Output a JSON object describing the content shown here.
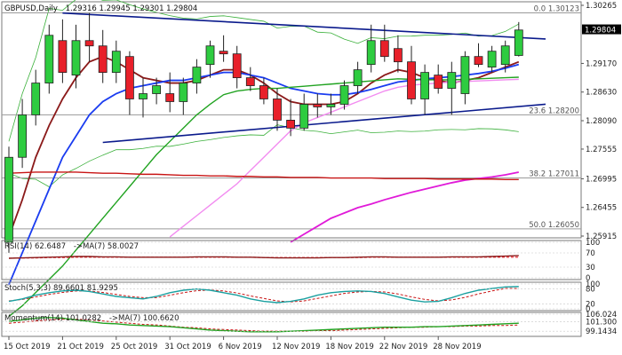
{
  "header": {
    "symbol": "GBPUSD,Daily",
    "ohlc": "1.29316 1.29945 1.29301 1.29804"
  },
  "price_axis": {
    "ticks": [
      "1.30265",
      "1.29170",
      "1.28630",
      "1.28090",
      "1.27555",
      "1.26995",
      "1.26455",
      "1.25915"
    ],
    "current_price": "1.29804"
  },
  "fib_levels": [
    {
      "label": "0.0 1.30123",
      "value": 1.30123
    },
    {
      "label": "23.6 1.28200",
      "value": 1.282
    },
    {
      "label": "38.2 1.27011",
      "value": 1.27011
    },
    {
      "label": "50.0 1.26050",
      "value": 1.2605
    }
  ],
  "x_axis": {
    "labels": [
      {
        "text": "15 Oct 2019",
        "index": 0
      },
      {
        "text": "21 Oct 2019",
        "index": 4
      },
      {
        "text": "25 Oct 2019",
        "index": 8
      },
      {
        "text": "31 Oct 2019",
        "index": 12
      },
      {
        "text": "6 Nov 2019",
        "index": 16
      },
      {
        "text": "12 Nov 2019",
        "index": 20
      },
      {
        "text": "18 Nov 2019",
        "index": 24
      },
      {
        "text": "22 Nov 2019",
        "index": 28
      },
      {
        "text": "28 Nov 2019",
        "index": 32
      }
    ]
  },
  "indicators": {
    "rsi": {
      "label": "RSI(14) 62.6487",
      "ma_label": "->MA(7) 58.0027",
      "ticks": [
        "100",
        "70",
        "30",
        "0"
      ]
    },
    "stoch": {
      "label": "Stoch(5,3,3) 89.6601 81.9295",
      "ticks": [
        "100",
        "80",
        "20",
        "0"
      ]
    },
    "momentum": {
      "label": "Momentum(14) 101.0282",
      "ma_label": "->MA(7) 100.6620",
      "ticks": [
        "106.024",
        "101.300",
        "99.1434"
      ]
    }
  },
  "colors": {
    "bull": "#2ecc40",
    "bear": "#e8202a",
    "trend": "#0a1a8c",
    "sma_dark_red": "#8b1a1a",
    "sma_blue": "#1a3cf0",
    "sma_green": "#21a321",
    "sma_pink": "#f28cf0",
    "sma_magenta": "#e01ad8",
    "sma_red": "#c81414",
    "fib": "#9a9a9a",
    "bollinger": "#3ab03a"
  },
  "chart_data": {
    "type": "candlestick",
    "title": "GBPUSD,Daily",
    "ylim": [
      1.25915,
      1.30265
    ],
    "candles": [
      {
        "o": 1.258,
        "h": 1.276,
        "l": 1.256,
        "c": 1.274
      },
      {
        "o": 1.274,
        "h": 1.285,
        "l": 1.272,
        "c": 1.282
      },
      {
        "o": 1.282,
        "h": 1.2905,
        "l": 1.28,
        "c": 1.288
      },
      {
        "o": 1.288,
        "h": 1.299,
        "l": 1.286,
        "c": 1.297
      },
      {
        "o": 1.296,
        "h": 1.3,
        "l": 1.288,
        "c": 1.29
      },
      {
        "o": 1.2895,
        "h": 1.299,
        "l": 1.287,
        "c": 1.296
      },
      {
        "o": 1.296,
        "h": 1.3012,
        "l": 1.292,
        "c": 1.295
      },
      {
        "o": 1.295,
        "h": 1.298,
        "l": 1.288,
        "c": 1.29
      },
      {
        "o": 1.29,
        "h": 1.296,
        "l": 1.288,
        "c": 1.294
      },
      {
        "o": 1.293,
        "h": 1.294,
        "l": 1.282,
        "c": 1.285
      },
      {
        "o": 1.285,
        "h": 1.289,
        "l": 1.2815,
        "c": 1.286
      },
      {
        "o": 1.286,
        "h": 1.289,
        "l": 1.284,
        "c": 1.2875
      },
      {
        "o": 1.286,
        "h": 1.29,
        "l": 1.2825,
        "c": 1.2845
      },
      {
        "o": 1.2845,
        "h": 1.289,
        "l": 1.282,
        "c": 1.288
      },
      {
        "o": 1.288,
        "h": 1.2925,
        "l": 1.286,
        "c": 1.291
      },
      {
        "o": 1.2915,
        "h": 1.296,
        "l": 1.289,
        "c": 1.295
      },
      {
        "o": 1.294,
        "h": 1.297,
        "l": 1.292,
        "c": 1.2935
      },
      {
        "o": 1.2935,
        "h": 1.295,
        "l": 1.287,
        "c": 1.289
      },
      {
        "o": 1.289,
        "h": 1.291,
        "l": 1.2865,
        "c": 1.2875
      },
      {
        "o": 1.2875,
        "h": 1.289,
        "l": 1.284,
        "c": 1.285
      },
      {
        "o": 1.285,
        "h": 1.287,
        "l": 1.279,
        "c": 1.281
      },
      {
        "o": 1.281,
        "h": 1.285,
        "l": 1.278,
        "c": 1.2795
      },
      {
        "o": 1.2795,
        "h": 1.286,
        "l": 1.279,
        "c": 1.284
      },
      {
        "o": 1.284,
        "h": 1.286,
        "l": 1.2815,
        "c": 1.2835
      },
      {
        "o": 1.2835,
        "h": 1.286,
        "l": 1.282,
        "c": 1.284
      },
      {
        "o": 1.284,
        "h": 1.2885,
        "l": 1.283,
        "c": 1.2875
      },
      {
        "o": 1.2875,
        "h": 1.292,
        "l": 1.286,
        "c": 1.2905
      },
      {
        "o": 1.2915,
        "h": 1.299,
        "l": 1.29,
        "c": 1.296
      },
      {
        "o": 1.296,
        "h": 1.299,
        "l": 1.292,
        "c": 1.293
      },
      {
        "o": 1.2945,
        "h": 1.297,
        "l": 1.29,
        "c": 1.292
      },
      {
        "o": 1.292,
        "h": 1.295,
        "l": 1.284,
        "c": 1.285
      },
      {
        "o": 1.285,
        "h": 1.2915,
        "l": 1.282,
        "c": 1.29
      },
      {
        "o": 1.2895,
        "h": 1.2915,
        "l": 1.286,
        "c": 1.287
      },
      {
        "o": 1.287,
        "h": 1.292,
        "l": 1.282,
        "c": 1.29
      },
      {
        "o": 1.286,
        "h": 1.294,
        "l": 1.284,
        "c": 1.293
      },
      {
        "o": 1.293,
        "h": 1.2955,
        "l": 1.291,
        "c": 1.2915
      },
      {
        "o": 1.291,
        "h": 1.295,
        "l": 1.29,
        "c": 1.294
      },
      {
        "o": 1.2915,
        "h": 1.296,
        "l": 1.29,
        "c": 1.295
      },
      {
        "o": 1.2932,
        "h": 1.2995,
        "l": 1.293,
        "c": 1.298
      }
    ],
    "moving_averages": [
      {
        "color": "sma_dark_red",
        "values": [
          1.259,
          1.266,
          1.274,
          1.28,
          1.285,
          1.289,
          1.292,
          1.293,
          1.292,
          1.2905,
          1.289,
          1.2885,
          1.288,
          1.288,
          1.2885,
          1.2895,
          1.2905,
          1.2905,
          1.2895,
          1.288,
          1.286,
          1.2845,
          1.284,
          1.284,
          1.284,
          1.2845,
          1.286,
          1.288,
          1.2895,
          1.2905,
          1.29,
          1.289,
          1.2885,
          1.288,
          1.2885,
          1.289,
          1.29,
          1.291,
          1.292
        ]
      },
      {
        "color": "sma_blue",
        "values": [
          1.25,
          1.256,
          1.262,
          1.268,
          1.274,
          1.278,
          1.282,
          1.2845,
          1.286,
          1.287,
          1.2875,
          1.288,
          1.2885,
          1.2885,
          1.289,
          1.2895,
          1.29,
          1.29,
          1.2895,
          1.289,
          1.288,
          1.287,
          1.2865,
          1.286,
          1.2858,
          1.2858,
          1.2862,
          1.2868,
          1.2875,
          1.2882,
          1.2885,
          1.2888,
          1.289,
          1.2892,
          1.2895,
          1.2898,
          1.2902,
          1.2908,
          1.2915
        ]
      },
      {
        "color": "sma_green",
        "values": [
          1.244,
          1.246,
          1.2485,
          1.251,
          1.2535,
          1.2565,
          1.2595,
          1.2625,
          1.2655,
          1.2685,
          1.2715,
          1.2745,
          1.277,
          1.2795,
          1.282,
          1.284,
          1.2858,
          1.2865,
          1.2868,
          1.287,
          1.287,
          1.2872,
          1.2874,
          1.2876,
          1.2878,
          1.288,
          1.2882,
          1.2884,
          1.2886,
          1.2888,
          1.2887,
          1.2886,
          1.2886,
          1.2886,
          1.2887,
          1.2888,
          1.2889,
          1.289,
          1.2891
        ]
      },
      {
        "color": "sma_pink",
        "values": [
          null,
          null,
          null,
          null,
          null,
          null,
          null,
          null,
          null,
          null,
          null,
          null,
          1.259,
          1.261,
          1.263,
          1.265,
          1.267,
          1.269,
          1.2715,
          1.274,
          1.2765,
          1.279,
          1.2805,
          1.2815,
          1.2825,
          1.2835,
          1.2845,
          1.2855,
          1.2865,
          1.2872,
          1.2876,
          1.2878,
          1.288,
          1.2882,
          1.2883,
          1.2884,
          1.2885,
          1.2886,
          1.2887
        ]
      },
      {
        "color": "sma_magenta",
        "values": [
          null,
          null,
          null,
          null,
          null,
          null,
          null,
          null,
          null,
          null,
          null,
          null,
          null,
          null,
          null,
          null,
          null,
          null,
          null,
          null,
          null,
          1.258,
          1.2595,
          1.261,
          1.2625,
          1.2635,
          1.2645,
          1.2652,
          1.266,
          1.2667,
          1.2674,
          1.268,
          1.2686,
          1.2692,
          1.2697,
          1.27,
          1.2703,
          1.2707,
          1.2712
        ]
      },
      {
        "color": "sma_red",
        "values": [
          1.271,
          1.2711,
          1.2712,
          1.2712,
          1.2712,
          1.2712,
          1.2711,
          1.271,
          1.271,
          1.2709,
          1.2708,
          1.2708,
          1.2707,
          1.2706,
          1.2706,
          1.2705,
          1.2705,
          1.2704,
          1.2704,
          1.2703,
          1.2703,
          1.2702,
          1.2702,
          1.2702,
          1.2701,
          1.2701,
          1.2701,
          1.2701,
          1.27,
          1.27,
          1.27,
          1.27,
          1.2699,
          1.2699,
          1.2699,
          1.2699,
          1.2699,
          1.2698,
          1.2698
        ]
      }
    ],
    "trendlines": [
      {
        "x1": 4,
        "y1": 1.3012,
        "x2": 40,
        "y2": 1.2963
      },
      {
        "x1": 7,
        "y1": 1.2768,
        "x2": 40,
        "y2": 1.284
      }
    ],
    "rsi": {
      "values": [
        55,
        56,
        57,
        58,
        59,
        60,
        60,
        59,
        59,
        58,
        58,
        58,
        58,
        58,
        59,
        59,
        59,
        58,
        58,
        57,
        56,
        56,
        56,
        56,
        57,
        57,
        58,
        59,
        59,
        58,
        58,
        58,
        58,
        59,
        59,
        59,
        60,
        61,
        62.6
      ],
      "ma": [
        55,
        56,
        56,
        57,
        57,
        58,
        58,
        58,
        58,
        58,
        58,
        58,
        58,
        58,
        58,
        58,
        58,
        58,
        58,
        57,
        57,
        57,
        57,
        57,
        57,
        57,
        57,
        58,
        58,
        58,
        58,
        58,
        58,
        58,
        58,
        58,
        58,
        58,
        58.0
      ],
      "ylim": [
        0,
        100
      ]
    },
    "stoch": {
      "k": [
        30,
        40,
        55,
        65,
        72,
        75,
        70,
        60,
        50,
        45,
        40,
        50,
        65,
        75,
        80,
        75,
        65,
        55,
        40,
        30,
        25,
        30,
        40,
        55,
        65,
        70,
        72,
        70,
        62,
        48,
        35,
        28,
        30,
        45,
        62,
        75,
        82,
        88,
        89.7
      ],
      "d": [
        32,
        38,
        48,
        58,
        66,
        72,
        72,
        66,
        58,
        50,
        45,
        45,
        55,
        65,
        73,
        76,
        72,
        64,
        52,
        42,
        32,
        28,
        32,
        42,
        52,
        62,
        68,
        70,
        68,
        60,
        48,
        38,
        32,
        36,
        46,
        60,
        72,
        82,
        81.9
      ],
      "ylim": [
        0,
        100
      ]
    },
    "momentum": {
      "values": [
        101.3,
        101.6,
        101.9,
        102.0,
        101.9,
        101.6,
        101.3,
        101.0,
        100.9,
        100.7,
        100.6,
        100.5,
        100.4,
        100.2,
        100.0,
        99.8,
        99.7,
        99.6,
        99.5,
        99.5,
        99.5,
        99.6,
        99.7,
        99.8,
        99.9,
        100.0,
        100.1,
        100.2,
        100.3,
        100.3,
        100.3,
        100.4,
        100.4,
        100.5,
        100.6,
        100.7,
        100.8,
        100.9,
        101.0
      ],
      "ma": [
        101.0,
        101.2,
        101.4,
        101.6,
        101.7,
        101.7,
        101.6,
        101.4,
        101.2,
        101.0,
        100.8,
        100.7,
        100.5,
        100.3,
        100.2,
        100.0,
        99.9,
        99.8,
        99.7,
        99.6,
        99.6,
        99.6,
        99.6,
        99.7,
        99.7,
        99.8,
        99.9,
        100.0,
        100.1,
        100.2,
        100.3,
        100.3,
        100.4,
        100.4,
        100.5,
        100.5,
        100.6,
        100.6,
        100.7
      ],
      "ylim": [
        99.0,
        102.6
      ]
    }
  }
}
